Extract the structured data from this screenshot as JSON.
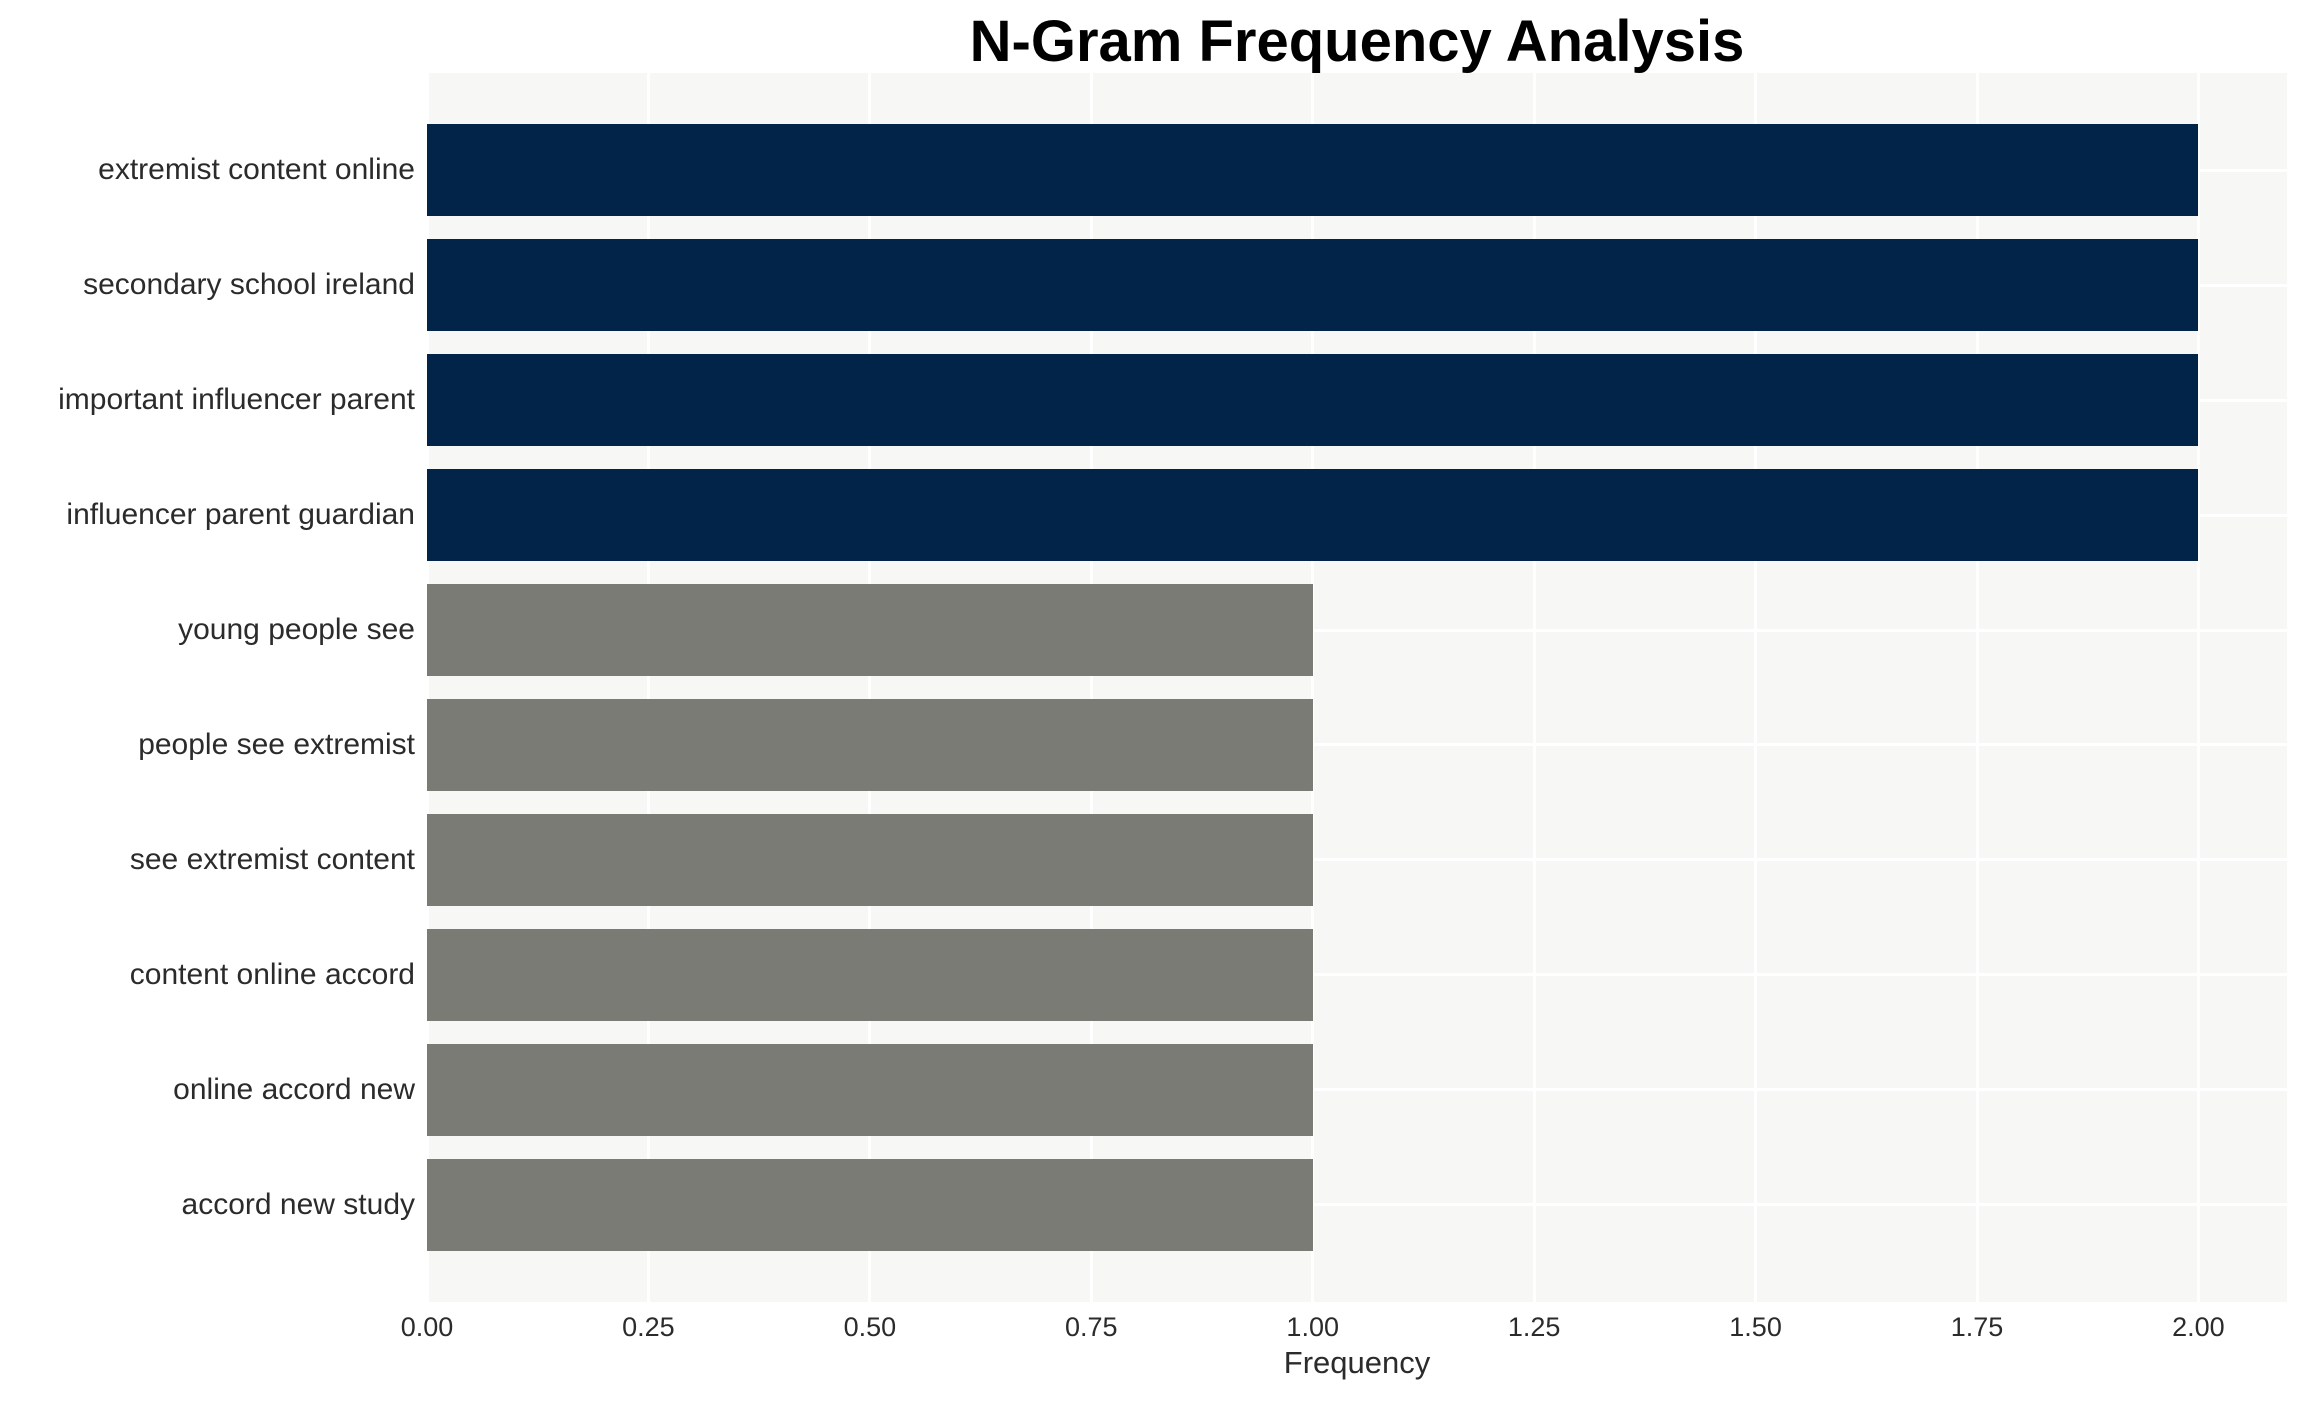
{
  "chart_data": {
    "type": "bar",
    "orientation": "horizontal",
    "title": "N-Gram Frequency Analysis",
    "xlabel": "Frequency",
    "ylabel": "",
    "categories": [
      "extremist content online",
      "secondary school ireland",
      "important influencer parent",
      "influencer parent guardian",
      "young people see",
      "people see extremist",
      "see extremist content",
      "content online accord",
      "online accord new",
      "accord new study"
    ],
    "values": [
      2.0,
      2.0,
      2.0,
      2.0,
      1.0,
      1.0,
      1.0,
      1.0,
      1.0,
      1.0
    ],
    "bar_colors": [
      "#032449",
      "#032449",
      "#032449",
      "#032449",
      "#7b7b76",
      "#7b7b76",
      "#7b7b76",
      "#7b7b76",
      "#7b7b76",
      "#7b7b76"
    ],
    "x_tick_values": [
      0,
      0.25,
      0.5,
      0.75,
      1.0,
      1.25,
      1.5,
      1.75,
      2.0
    ],
    "x_tick_labels": [
      "0.00",
      "0.25",
      "0.50",
      "0.75",
      "1.00",
      "1.25",
      "1.50",
      "1.75",
      "2.00"
    ],
    "xlim": [
      0,
      2.1
    ],
    "grid": true,
    "legend": false,
    "bar_width_fraction": 0.8
  },
  "colors": {
    "bar_high": "#032449",
    "bar_low": "#7b7b76",
    "plot_background": "#f7f7f6",
    "grid_line": "#ffffff",
    "tick_text": "#2b2b2b",
    "title_text": "#000000",
    "page_background": "#ffffff"
  }
}
